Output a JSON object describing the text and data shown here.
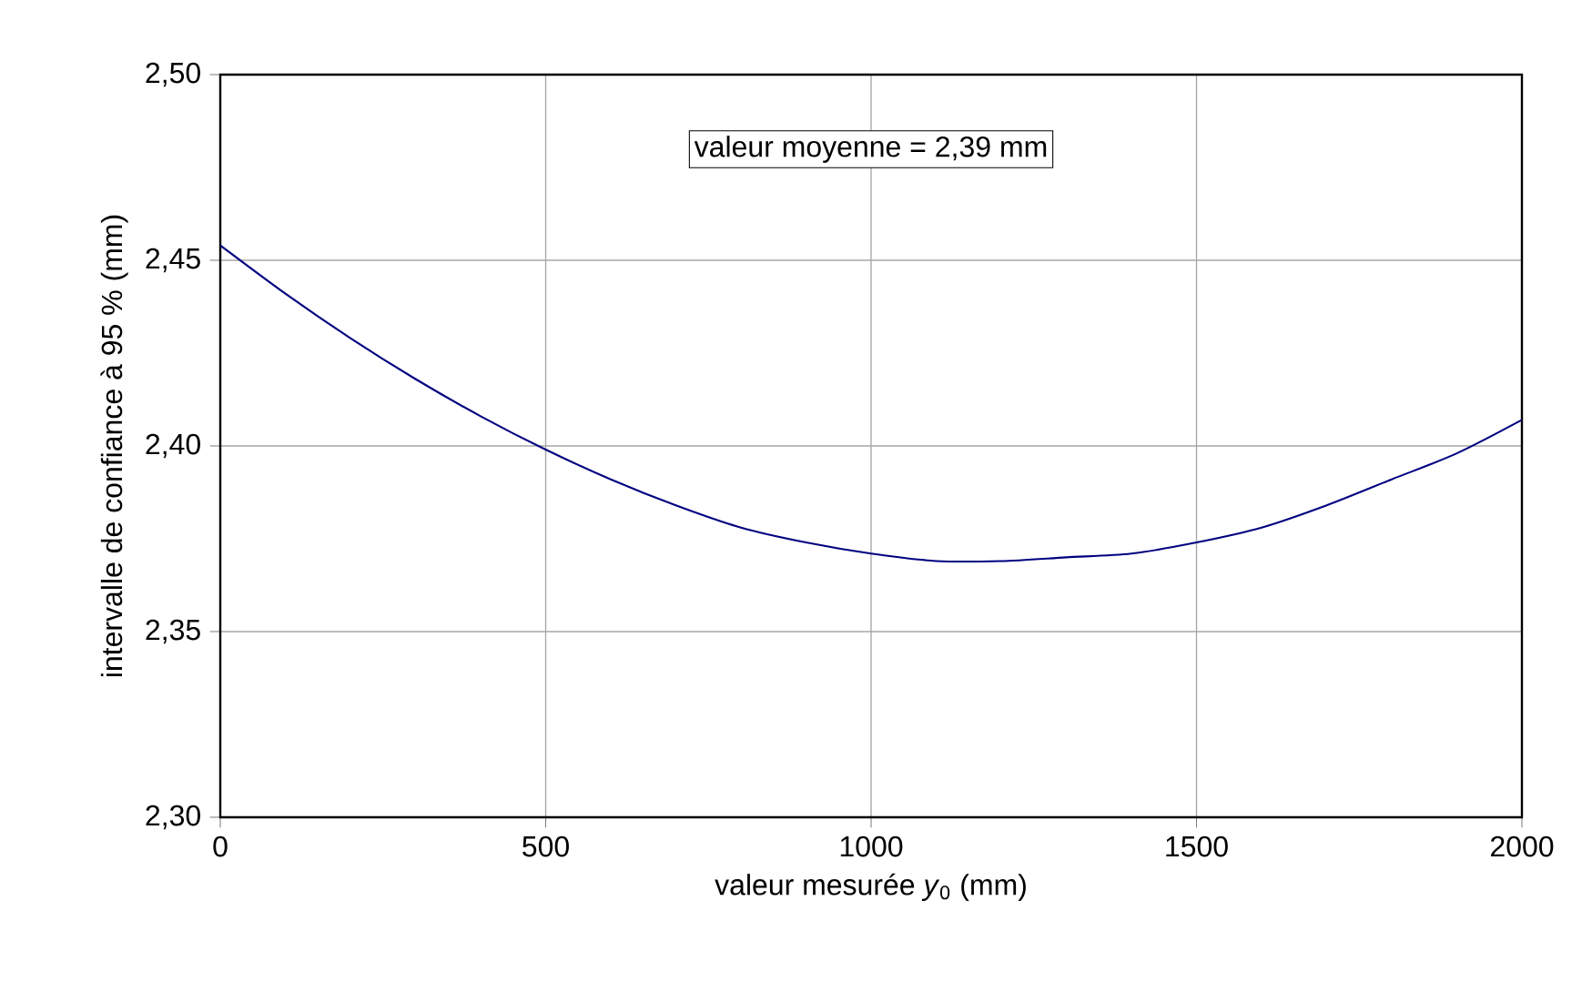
{
  "chart_data": {
    "type": "line",
    "xlabel": "valeur mesurée *y*$_{0}$ (mm)",
    "ylabel": "intervalle de confiance à 95 % (mm)",
    "annotations": [
      "valeur moyenne = 2,39 mm"
    ],
    "x": [
      0,
      100,
      200,
      300,
      400,
      500,
      600,
      700,
      800,
      900,
      1000,
      1100,
      1200,
      1300,
      1400,
      1500,
      1600,
      1700,
      1800,
      1900,
      2000
    ],
    "series": [
      {
        "color": "#000080",
        "values": [
          2.454,
          2.441,
          2.429,
          2.418,
          2.408,
          2.399,
          2.391,
          2.384,
          2.378,
          2.374,
          2.371,
          2.369,
          2.369,
          2.37,
          2.371,
          2.374,
          2.378,
          2.384,
          2.391,
          2.398,
          2.407
        ]
      }
    ],
    "xlim": [
      0,
      2000
    ],
    "xticks": [
      0,
      500,
      1000,
      1500,
      2000
    ],
    "ylim": [
      2.3,
      2.5
    ],
    "yticks": [
      {
        "value": 2.3,
        "label": "2,30"
      },
      {
        "value": 2.35,
        "label": "2,35"
      },
      {
        "value": 2.4,
        "label": "2,40"
      },
      {
        "value": 2.45,
        "label": "2,45"
      },
      {
        "value": 2.5,
        "label": "2,50"
      }
    ],
    "grid": true,
    "marker": "none",
    "line_style": "solid"
  }
}
